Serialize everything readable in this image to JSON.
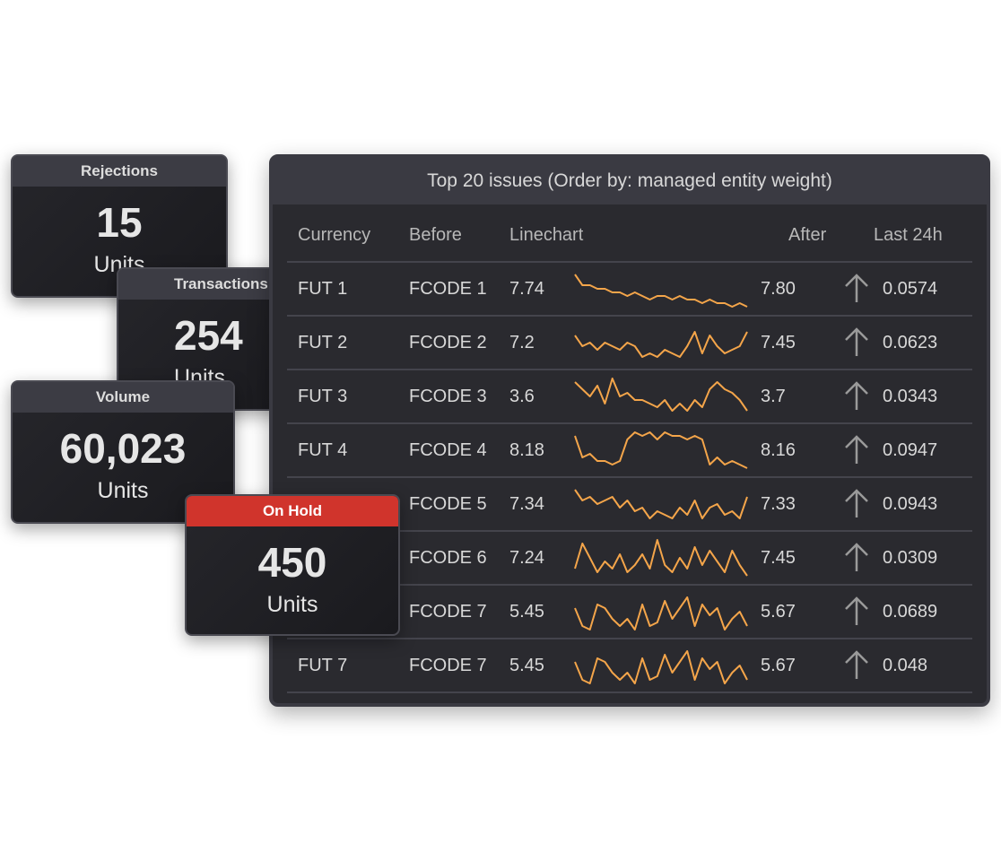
{
  "cards": [
    {
      "title": "Rejections",
      "value": "15",
      "unit": "Units"
    },
    {
      "title": "Transactions",
      "value": "254",
      "unit": "Units"
    },
    {
      "title": "Volume",
      "value": "60,023",
      "unit": "Units"
    },
    {
      "title": "On Hold",
      "value": "450",
      "unit": "Units"
    }
  ],
  "table": {
    "title": "Top 20 issues (Order by: managed entity weight)",
    "headers": [
      "Currency",
      "Before",
      "Linechart",
      "After",
      "Last 24h"
    ],
    "rows": [
      {
        "currency": "FUT 1",
        "code": "FCODE 1",
        "before": "7.74",
        "line": [
          9,
          6,
          6,
          5,
          5,
          4,
          4,
          3,
          4,
          3,
          2,
          3,
          3,
          2,
          3,
          2,
          2,
          1,
          2,
          1,
          1,
          0,
          1,
          0
        ],
        "after": "7.80",
        "last_24h": "0.0574"
      },
      {
        "currency": "FUT 2",
        "code": "FCODE 2",
        "before": "7.2",
        "line": [
          7,
          4,
          5,
          3,
          5,
          4,
          3,
          5,
          4,
          1,
          2,
          1,
          3,
          2,
          1,
          4,
          8,
          2,
          7,
          4,
          2,
          3,
          4,
          8
        ],
        "after": "7.45",
        "last_24h": "0.0623"
      },
      {
        "currency": "FUT 3",
        "code": "FCODE 3",
        "before": "3.6",
        "line": [
          9,
          7,
          5,
          8,
          3,
          10,
          5,
          6,
          4,
          4,
          3,
          2,
          4,
          1,
          3,
          1,
          4,
          2,
          7,
          9,
          7,
          6,
          4,
          1
        ],
        "after": "3.7",
        "last_24h": "0.0343"
      },
      {
        "currency": "FUT 4",
        "code": "FCODE 4",
        "before": "8.18",
        "line": [
          9,
          3,
          4,
          2,
          2,
          1,
          2,
          8,
          10,
          9,
          10,
          8,
          10,
          9,
          9,
          8,
          9,
          8,
          1,
          3,
          1,
          2,
          1,
          0
        ],
        "after": "8.16",
        "last_24h": "0.0947"
      },
      {
        "currency": null,
        "code": "FCODE 5",
        "before": "7.34",
        "line": [
          9,
          6,
          7,
          5,
          6,
          7,
          4,
          6,
          3,
          4,
          1,
          3,
          2,
          1,
          4,
          2,
          6,
          1,
          4,
          5,
          2,
          3,
          1,
          7
        ],
        "after": "7.33",
        "last_24h": "0.0943"
      },
      {
        "currency": null,
        "code": "FCODE 6",
        "before": "7.24",
        "line": [
          2,
          9,
          5,
          1,
          4,
          2,
          6,
          1,
          3,
          6,
          2,
          10,
          3,
          1,
          5,
          2,
          8,
          3,
          7,
          4,
          1,
          7,
          3,
          0
        ],
        "after": "7.45",
        "last_24h": "0.0309"
      },
      {
        "currency": null,
        "code": "FCODE 7",
        "before": "5.45",
        "line": [
          6,
          1,
          0,
          7,
          6,
          3,
          1,
          3,
          0,
          7,
          1,
          2,
          8,
          3,
          6,
          9,
          1,
          7,
          4,
          6,
          0,
          3,
          5,
          1
        ],
        "after": "5.67",
        "last_24h": "0.0689"
      },
      {
        "currency": "FUT 7",
        "code": "FCODE 7",
        "before": "5.45",
        "line": [
          6,
          1,
          0,
          7,
          6,
          3,
          1,
          3,
          0,
          7,
          1,
          2,
          8,
          3,
          6,
          9,
          1,
          7,
          4,
          6,
          0,
          3,
          5,
          1
        ],
        "after": "5.67",
        "last_24h": "0.048"
      }
    ]
  }
}
